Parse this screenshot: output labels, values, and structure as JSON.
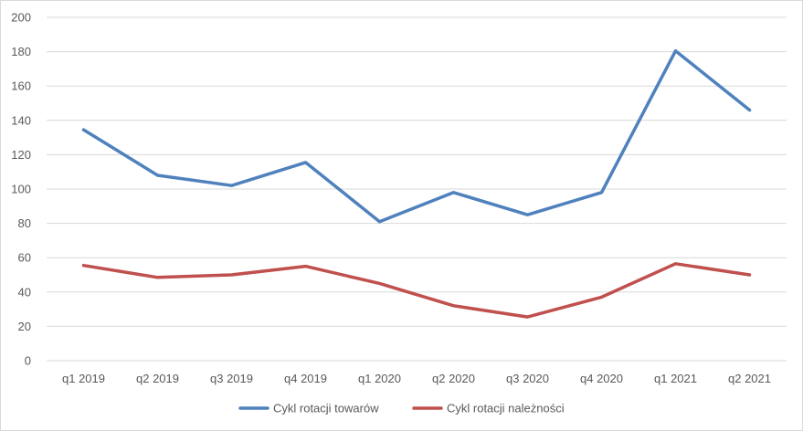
{
  "chart_data": {
    "type": "line",
    "categories": [
      "q1 2019",
      "q2 2019",
      "q3 2019",
      "q4 2019",
      "q1 2020",
      "q2 2020",
      "q3 2020",
      "q4 2020",
      "q1 2021",
      "q2 2021"
    ],
    "series": [
      {
        "name": "Cykl rotacji towarów",
        "color": "#4f81bd",
        "values": [
          134.5,
          108,
          102,
          115.5,
          81,
          98,
          85,
          98,
          180.5,
          146
        ]
      },
      {
        "name": "Cykl rotacji należności",
        "color": "#c0504d",
        "values": [
          55.5,
          48.5,
          50,
          55,
          45,
          32,
          25.5,
          37,
          56.5,
          50
        ]
      }
    ],
    "yticks": [
      "0",
      "20",
      "40",
      "60",
      "80",
      "100",
      "120",
      "140",
      "160",
      "180",
      "200"
    ],
    "ylim": [
      0,
      200
    ],
    "grid": true,
    "legend_position": "bottom"
  }
}
